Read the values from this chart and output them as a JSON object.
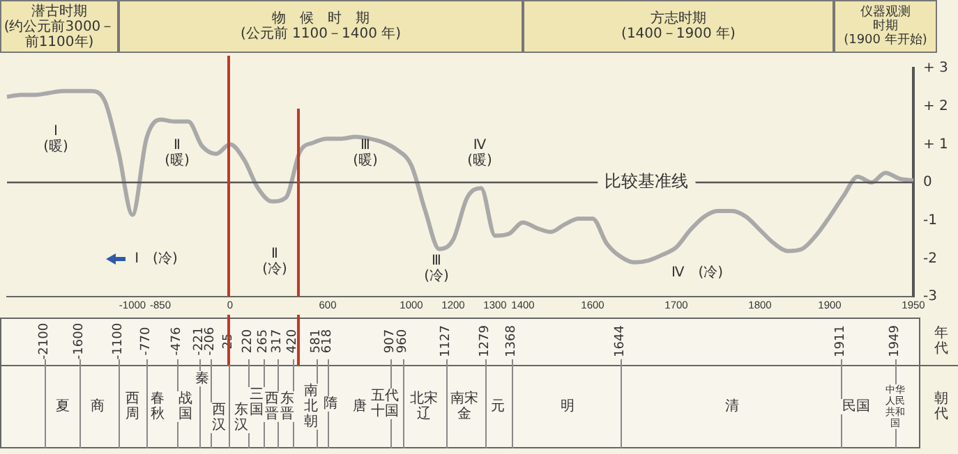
{
  "chart_data": {
    "type": "line",
    "categories": [
      null,
      null,
      null,
      null,
      null,
      null,
      null,
      null,
      null,
      "-1000",
      null,
      "-850",
      null,
      null,
      null,
      null,
      "0",
      null,
      null,
      null,
      null,
      null,
      null,
      "600",
      null,
      null,
      null,
      null,
      null,
      "1000",
      null,
      null,
      "1200",
      null,
      null,
      "1300",
      null,
      "1400",
      null,
      null,
      null,
      null,
      "1600",
      null,
      null,
      null,
      null,
      null,
      "1700",
      null,
      null,
      null,
      null,
      null,
      "1800",
      null,
      null,
      null,
      null,
      "1900",
      null,
      null,
      null,
      null,
      null,
      "1950"
    ],
    "series": [
      {
        "color": "#a9a9a9",
        "values": [
          2.25,
          2.3,
          2.3,
          2.35,
          2.4,
          2.4,
          2.4,
          2.15,
          0.8,
          -0.85,
          1.15,
          1.65,
          1.6,
          1.6,
          0.95,
          0.75,
          1.0,
          0.6,
          -0.15,
          -0.5,
          -0.4,
          0.8,
          1.05,
          1.15,
          1.15,
          1.2,
          1.15,
          1.05,
          0.85,
          0.45,
          -0.75,
          -1.75,
          -1.5,
          -0.4,
          -0.15,
          -1.4,
          -1.35,
          -1.05,
          -1.2,
          -1.3,
          -1.1,
          -0.95,
          -0.95,
          -1.6,
          -1.95,
          -2.1,
          -2.05,
          -1.9,
          -1.7,
          -1.25,
          -0.9,
          -0.75,
          -0.75,
          -0.9,
          -1.25,
          -1.6,
          -1.8,
          -1.75,
          -1.4,
          -0.9,
          -0.35,
          0.15,
          0,
          0.25,
          0.1,
          0.05
        ]
      }
    ],
    "ylim": [
      -3,
      3
    ],
    "yticks": [
      {
        "value": 3,
        "label": "+ 3"
      },
      {
        "value": 2,
        "label": "+ 2"
      },
      {
        "value": 1,
        "label": "+ 1"
      },
      0,
      -1,
      -2,
      -3
    ],
    "ref_lines": [
      {
        "axis": "y",
        "value": 0,
        "label": "比较基准线",
        "color": "#555555"
      }
    ],
    "annotations": [
      "潜古时期(约公元前3000－前1100年)",
      "物　候　时　期(公元前 1100－1400 年)",
      "方志时期(1400－1900 年)",
      "仪器观测时期(1900 年开始)",
      "Ⅰ(暖)",
      "Ⅱ(暖)",
      "Ⅲ(暖)",
      "Ⅳ(暖)",
      "Ⅰ　(冷)",
      "Ⅱ(冷)",
      "Ⅲ(冷)",
      "Ⅳ　(冷)",
      "年代",
      "朝代",
      "-2100",
      "-1600",
      "-1100",
      "-770",
      "-476",
      "-221",
      "-206",
      "25",
      "220",
      "265",
      "317",
      "420",
      "581",
      "618",
      "907",
      "960",
      "1127",
      "1279",
      "1368",
      "1644",
      "1911",
      "1949",
      "夏",
      "商",
      "西周",
      "春秋",
      "战国",
      "秦",
      "西汉",
      "东汉",
      "三国",
      "西晋",
      "东晋",
      "南北朝",
      "隋",
      "唐",
      "五代十国",
      "北宋辽",
      "南宋金",
      "元",
      "明",
      "清",
      "民国",
      "中华人民共和国"
    ]
  }
}
